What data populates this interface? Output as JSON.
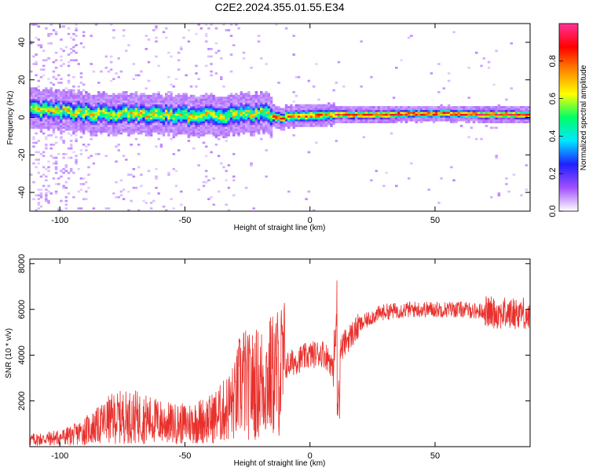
{
  "title": "C2E2.2024.355.01.55.E34",
  "colors": {
    "series_line": "#e8302c",
    "colormap": [
      "#ffffff",
      "#a050ff",
      "#2020ff",
      "#00e6ff",
      "#00ff66",
      "#ffff00",
      "#ff8800",
      "#ff0000",
      "#ff3399"
    ]
  },
  "chart_data": [
    {
      "type": "heatmap",
      "xlabel": "Height of straight line (km)",
      "ylabel": "Frequency (Hz)",
      "xlim": [
        -112,
        88
      ],
      "ylim": [
        -50,
        50
      ],
      "x_ticks": [
        -100,
        -50,
        0,
        50
      ],
      "y_ticks": [
        -40,
        -20,
        0,
        20,
        40
      ],
      "grid": false,
      "colorbar": {
        "label": "Normalized spectral amplitude",
        "range": [
          0,
          1
        ],
        "ticks": [
          "0.0",
          "0.2",
          "0.4",
          "0.6",
          "0.8"
        ],
        "tick_values": [
          0,
          0.2,
          0.4,
          0.6,
          0.8
        ]
      },
      "ridge": {
        "x": [
          -112,
          -100,
          -90,
          -80,
          -70,
          -60,
          -50,
          -40,
          -30,
          -20,
          -15,
          -10,
          0,
          10,
          20,
          30,
          40,
          50,
          60,
          70,
          80,
          88
        ],
        "center_hz": [
          4,
          3,
          2,
          1,
          1.5,
          1,
          0.5,
          0.5,
          1,
          2,
          0,
          0,
          0.5,
          1,
          1,
          1,
          1.5,
          1.5,
          1.5,
          1,
          1,
          1
        ]
      }
    },
    {
      "type": "line",
      "xlabel": "Height of straight line (km)",
      "ylabel": "SNR (10 * v/v)",
      "xlim": [
        -112,
        88
      ],
      "ylim": [
        0,
        8200
      ],
      "x_ticks": [
        -100,
        -50,
        0,
        50
      ],
      "y_ticks": [
        2000,
        4000,
        6000,
        8000
      ],
      "grid": false,
      "series": [
        {
          "x": [
            -112,
            -105,
            -100,
            -95,
            -90,
            -85,
            -80,
            -75,
            -70,
            -65,
            -60,
            -55,
            -50,
            -45,
            -40,
            -35,
            -30,
            -27,
            -25,
            -20,
            -15,
            -10,
            -5,
            0,
            5,
            8,
            10,
            11,
            12,
            15,
            20,
            25,
            30,
            40,
            50,
            60,
            70,
            80,
            85,
            88
          ],
          "values": [
            300,
            350,
            400,
            500,
            700,
            900,
            1200,
            1300,
            1300,
            1200,
            1100,
            1000,
            1000,
            1100,
            1200,
            1500,
            2000,
            3000,
            2600,
            2800,
            3100,
            3500,
            3800,
            4000,
            4100,
            3800,
            2900,
            6000,
            4200,
            4700,
            5300,
            5700,
            5900,
            6000,
            6000,
            6000,
            5900,
            5800,
            5900,
            5600
          ]
        }
      ]
    }
  ]
}
